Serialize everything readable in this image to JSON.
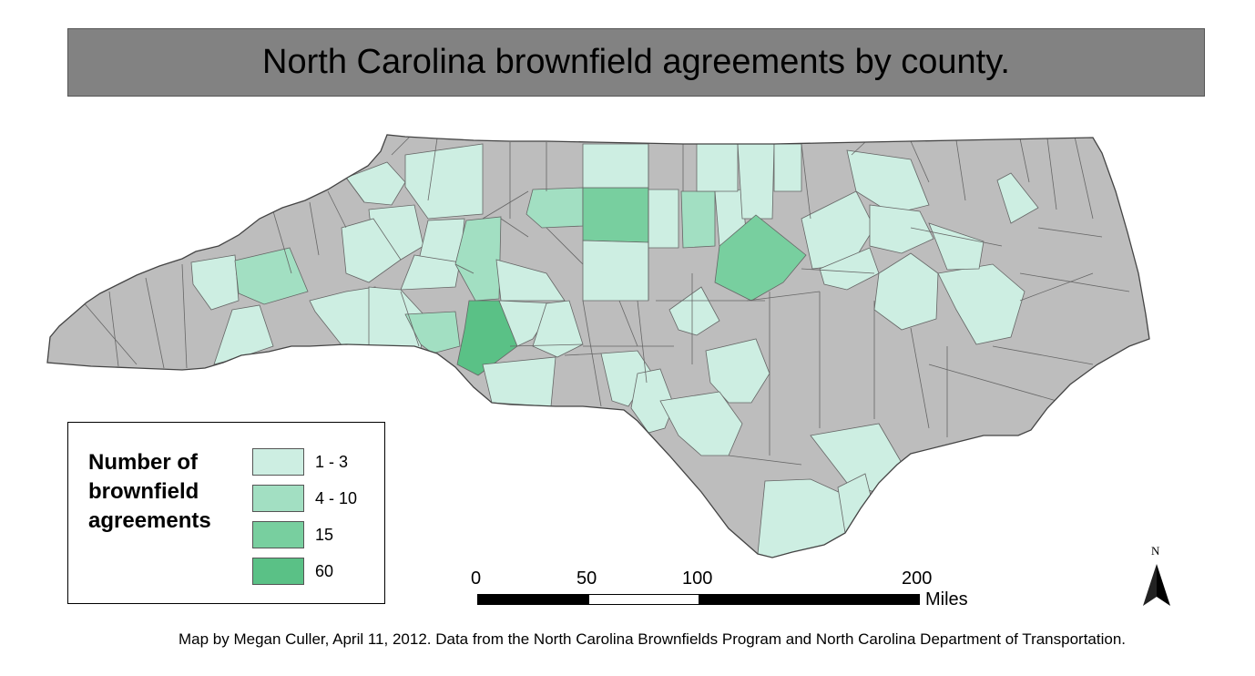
{
  "title": "North Carolina brownfield agreements by county.",
  "legend": {
    "title": "Number of brownfield agreements",
    "items": [
      {
        "label": "1 - 3",
        "color": "#cdeee2"
      },
      {
        "label": "4 - 10",
        "color": "#a2dfc2"
      },
      {
        "label": "15",
        "color": "#78cf9f"
      },
      {
        "label": "60",
        "color": "#5ac186"
      }
    ]
  },
  "no_data_color": "#bdbdbd",
  "scale_bar": {
    "ticks": [
      "0",
      "50",
      "100",
      "200"
    ],
    "unit": "Miles"
  },
  "north_arrow": {
    "label": "N",
    "icon": "north-arrow-icon"
  },
  "credit": "Map by Megan Culler, April 11, 2012. Data from the North Carolina Brownfields Program and North Carolina Department of Transportation."
}
